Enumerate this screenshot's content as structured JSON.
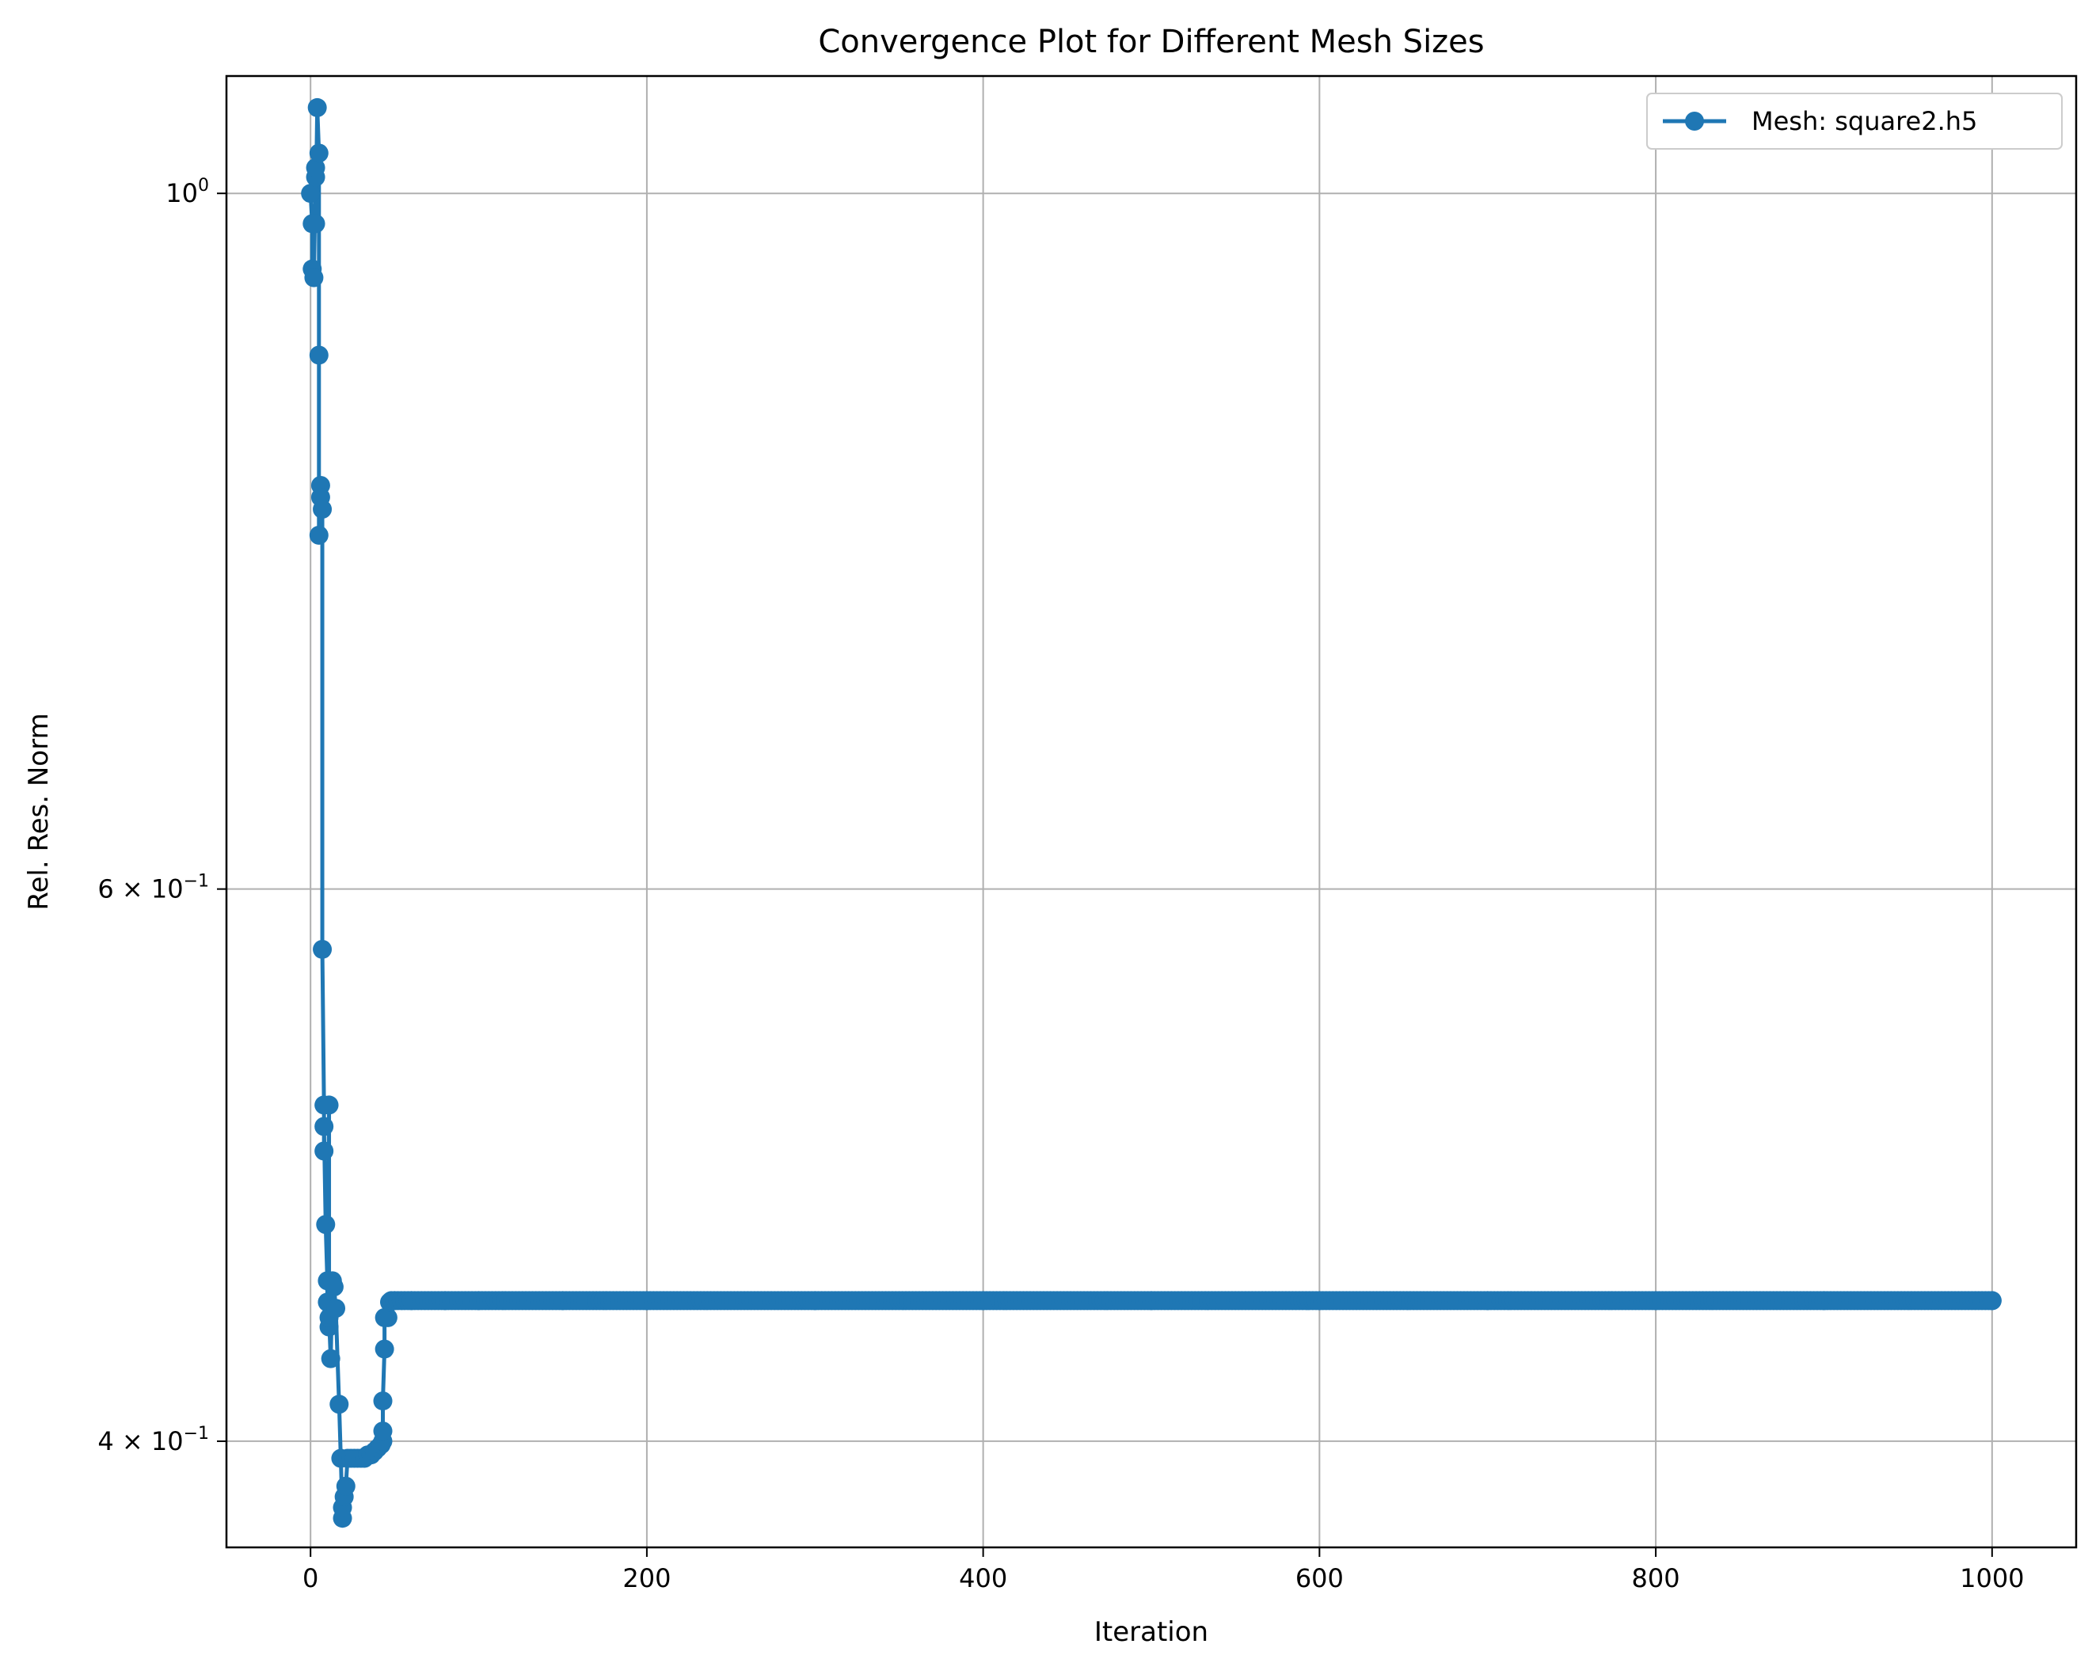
{
  "chart_data": {
    "type": "line",
    "title": "Convergence Plot for Different Mesh Sizes",
    "xlabel": "Iteration",
    "ylabel": "Rel. Res. Norm",
    "xlim": [
      -50,
      1050
    ],
    "ylim": [
      0.37,
      1.09
    ],
    "yscale": "log",
    "grid": true,
    "legend_position": "top-right",
    "x_ticks": [
      0,
      200,
      400,
      600,
      800,
      1000
    ],
    "y_ticks": [
      {
        "value": 1.0,
        "label": "10",
        "sup": "0"
      },
      {
        "value": 0.6,
        "label": "6 × 10",
        "sup": "−1"
      },
      {
        "value": 0.4,
        "label": "4 × 10",
        "sup": "−1"
      }
    ],
    "series": [
      {
        "name": "Mesh: square2.h5",
        "color": "#1f77b4",
        "marker": "circle",
        "points": [
          [
            0,
            1.0
          ],
          [
            1,
            0.978
          ],
          [
            1,
            0.946
          ],
          [
            2,
            0.94
          ],
          [
            3,
            1.012
          ],
          [
            3,
            1.019
          ],
          [
            3,
            0.978
          ],
          [
            4,
            1.065
          ],
          [
            5,
            1.03
          ],
          [
            5,
            0.888
          ],
          [
            5,
            0.778
          ],
          [
            6,
            0.807
          ],
          [
            6,
            0.8
          ],
          [
            7,
            0.793
          ],
          [
            7,
            0.574
          ],
          [
            8,
            0.512
          ],
          [
            8,
            0.495
          ],
          [
            8,
            0.504
          ],
          [
            9,
            0.469
          ],
          [
            10,
            0.45
          ],
          [
            10,
            0.443
          ],
          [
            11,
            0.512
          ],
          [
            11,
            0.435
          ],
          [
            11,
            0.438
          ],
          [
            12,
            0.425
          ],
          [
            13,
            0.45
          ],
          [
            14,
            0.448
          ],
          [
            15,
            0.441
          ],
          [
            17,
            0.411
          ],
          [
            18,
            0.395
          ],
          [
            19,
            0.378
          ],
          [
            19,
            0.381
          ],
          [
            20,
            0.384
          ],
          [
            21,
            0.387
          ],
          [
            22,
            0.395
          ],
          [
            24,
            0.395
          ],
          [
            26,
            0.395
          ],
          [
            28,
            0.395
          ],
          [
            30,
            0.395
          ],
          [
            32,
            0.395
          ],
          [
            34,
            0.396
          ],
          [
            36,
            0.396
          ],
          [
            38,
            0.397
          ],
          [
            40,
            0.398
          ],
          [
            42,
            0.399
          ],
          [
            43,
            0.4
          ],
          [
            43,
            0.403
          ],
          [
            43,
            0.412
          ],
          [
            44,
            0.428
          ],
          [
            44,
            0.438
          ],
          [
            46,
            0.438
          ],
          [
            47,
            0.443
          ],
          [
            50,
            0.4435
          ],
          [
            60,
            0.4435
          ],
          [
            80,
            0.4435
          ],
          [
            100,
            0.4435
          ],
          [
            150,
            0.4435
          ],
          [
            200,
            0.4435
          ],
          [
            300,
            0.4435
          ],
          [
            400,
            0.4435
          ],
          [
            500,
            0.4435
          ],
          [
            600,
            0.4435
          ],
          [
            700,
            0.4435
          ],
          [
            800,
            0.4435
          ],
          [
            900,
            0.4435
          ],
          [
            1000,
            0.4435
          ]
        ]
      }
    ]
  }
}
